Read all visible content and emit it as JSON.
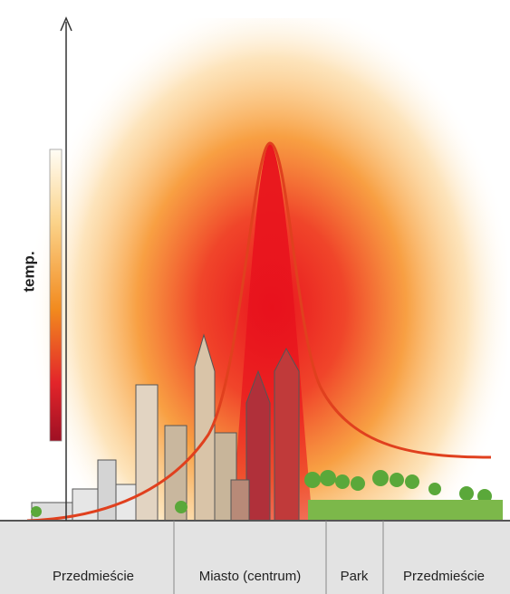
{
  "axis_label": "temp.",
  "zones": [
    {
      "label": "Przedmieście"
    },
    {
      "label": "Miasto (centrum)"
    },
    {
      "label": "Park"
    },
    {
      "label": "Przedmieście"
    }
  ]
}
